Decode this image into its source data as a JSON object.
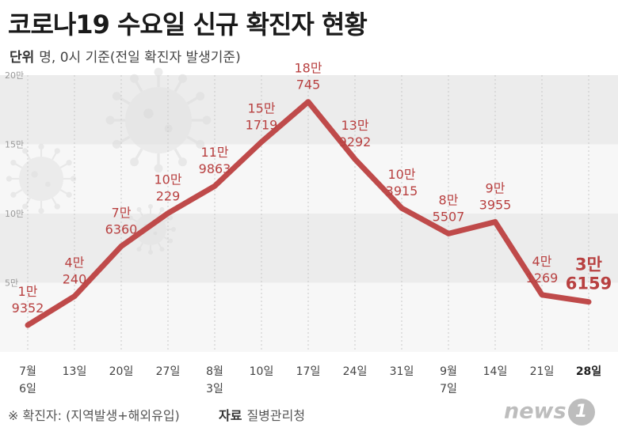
{
  "title": "코로나19 수요일 신규 확진자 현황",
  "unit_label": "단위",
  "unit_text": "명, 0시 기준(전일 확진자 발생기준)",
  "footnote": "※ 확진자: (지역발생+해외유입)",
  "source_label": "자료",
  "source_text": "질병관리청",
  "logo_text": "news",
  "logo_mark": "1",
  "colors": {
    "line": "#bf4a4a",
    "label": "#b84040",
    "band_dark": "#ececec",
    "band_light": "#f7f7f7",
    "tick": "#999999"
  },
  "chart_data": {
    "type": "line",
    "title": "코로나19 수요일 신규 확진자 현황",
    "ylim": [
      0,
      200000
    ],
    "yticks": [
      {
        "value": 50000,
        "label": "5만"
      },
      {
        "value": 100000,
        "label": "10만"
      },
      {
        "value": 150000,
        "label": "15만"
      },
      {
        "value": 200000,
        "label": "20만"
      }
    ],
    "points": [
      {
        "x": [
          "7월",
          "6일"
        ],
        "value": 19352,
        "label": [
          "1만",
          "9352"
        ]
      },
      {
        "x": [
          "13일"
        ],
        "value": 40240,
        "label": [
          "4만",
          "240"
        ]
      },
      {
        "x": [
          "20일"
        ],
        "value": 76360,
        "label": [
          "7만",
          "6360"
        ]
      },
      {
        "x": [
          "27일"
        ],
        "value": 100229,
        "label": [
          "10만",
          "229"
        ]
      },
      {
        "x": [
          "8월",
          "3일"
        ],
        "value": 119863,
        "label": [
          "11만",
          "9863"
        ]
      },
      {
        "x": [
          "10일"
        ],
        "value": 151719,
        "label": [
          "15만",
          "1719"
        ]
      },
      {
        "x": [
          "17일"
        ],
        "value": 180745,
        "label": [
          "18만",
          "745"
        ]
      },
      {
        "x": [
          "24일"
        ],
        "value": 139292,
        "label": [
          "13만",
          "9292"
        ]
      },
      {
        "x": [
          "31일"
        ],
        "value": 103915,
        "label": [
          "10만",
          "3915"
        ]
      },
      {
        "x": [
          "9월",
          "7일"
        ],
        "value": 85507,
        "label": [
          "8만",
          "5507"
        ]
      },
      {
        "x": [
          "14일"
        ],
        "value": 93955,
        "label": [
          "9만",
          "3955"
        ]
      },
      {
        "x": [
          "21일"
        ],
        "value": 41269,
        "label": [
          "4만",
          "1269"
        ]
      },
      {
        "x": [
          "28일"
        ],
        "value": 36159,
        "label": [
          "3만",
          "6159"
        ],
        "highlight": true
      }
    ]
  }
}
